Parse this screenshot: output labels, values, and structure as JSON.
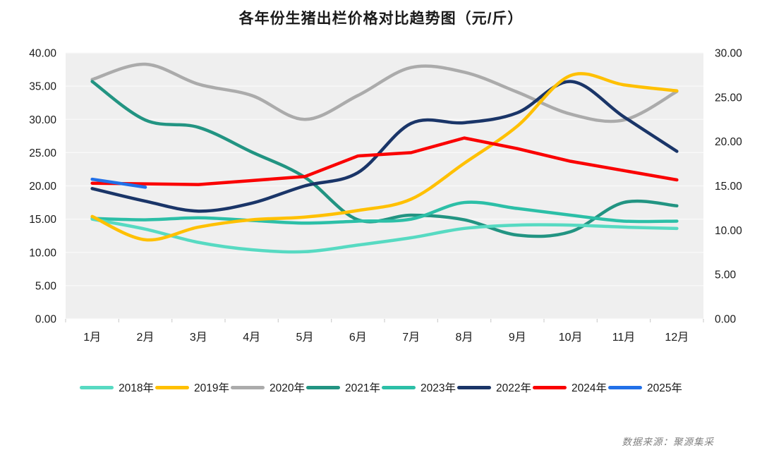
{
  "source_note": "数据来源：聚源集采",
  "chart_data": {
    "type": "line",
    "title": "各年份生猪出栏价格对比趋势图（元/斤）",
    "unit": "元/斤",
    "categories": [
      "1月",
      "2月",
      "3月",
      "4月",
      "5月",
      "6月",
      "7月",
      "8月",
      "9月",
      "10月",
      "11月",
      "12月"
    ],
    "x_axis": {
      "label": "",
      "tick_labels": [
        "1月",
        "2月",
        "3月",
        "4月",
        "5月",
        "6月",
        "7月",
        "8月",
        "9月",
        "10月",
        "11月",
        "12月"
      ]
    },
    "y_axis_left": {
      "min": 0,
      "max": 40,
      "tick_labels": [
        "40.00",
        "35.00",
        "30.00",
        "25.00",
        "20.00",
        "15.00",
        "10.00",
        "5.00",
        "0.00"
      ]
    },
    "y_axis_right": {
      "min": 0,
      "max": 30,
      "tick_labels": [
        "30.00",
        "25.00",
        "20.00",
        "15.00",
        "10.00",
        "5.00",
        "0.00"
      ]
    },
    "grid": true,
    "legend_position": "bottom",
    "plot_bg_color": "#EFEFEF",
    "gridline_color": "#FAFAFA",
    "series": [
      {
        "name": "2018年",
        "color": "#57DAC2",
        "smooth": true,
        "z": 4,
        "values": [
          15.0,
          13.5,
          11.5,
          10.4,
          10.1,
          11.1,
          12.2,
          13.6,
          14.1,
          14.1,
          13.8,
          13.6
        ]
      },
      {
        "name": "2019年",
        "color": "#FFC000",
        "smooth": true,
        "z": 6,
        "values": [
          15.4,
          11.9,
          13.8,
          14.9,
          15.3,
          16.3,
          18.0,
          23.4,
          29.0,
          36.6,
          35.2,
          34.3
        ]
      },
      {
        "name": "2020年",
        "color": "#ABABAB",
        "smooth": true,
        "z": 1,
        "values": [
          36.0,
          38.3,
          35.3,
          33.6,
          30.0,
          33.6,
          37.8,
          37.1,
          34.1,
          30.8,
          29.9,
          34.2
        ]
      },
      {
        "name": "2021年",
        "color": "#229482",
        "smooth": true,
        "z": 2,
        "values": [
          35.7,
          29.9,
          28.8,
          25.1,
          21.3,
          14.9,
          15.6,
          14.9,
          12.6,
          13.1,
          17.5,
          17.0
        ]
      },
      {
        "name": "2023年",
        "color": "#2CBFA7",
        "smooth": true,
        "z": 3,
        "values": [
          15.1,
          14.9,
          15.2,
          14.8,
          14.4,
          14.7,
          15.0,
          17.5,
          16.6,
          15.6,
          14.7,
          14.7
        ]
      },
      {
        "name": "2022年",
        "color": "#1A3568",
        "smooth": true,
        "z": 5,
        "values": [
          19.6,
          17.7,
          16.2,
          17.4,
          20.0,
          22.0,
          29.4,
          29.5,
          31.0,
          35.7,
          30.4,
          25.2
        ]
      },
      {
        "name": "2024年",
        "color": "#FA0000",
        "smooth": false,
        "z": 7,
        "values": [
          20.4,
          20.3,
          20.2,
          20.8,
          21.4,
          24.5,
          25.0,
          27.2,
          25.6,
          23.7,
          22.3,
          20.9
        ]
      },
      {
        "name": "2025年",
        "color": "#2170E8",
        "smooth": false,
        "z": 8,
        "values": [
          21.0,
          19.8,
          null,
          null,
          null,
          null,
          null,
          null,
          null,
          null,
          null,
          null
        ]
      }
    ],
    "source": "数据来源：聚源集采"
  }
}
